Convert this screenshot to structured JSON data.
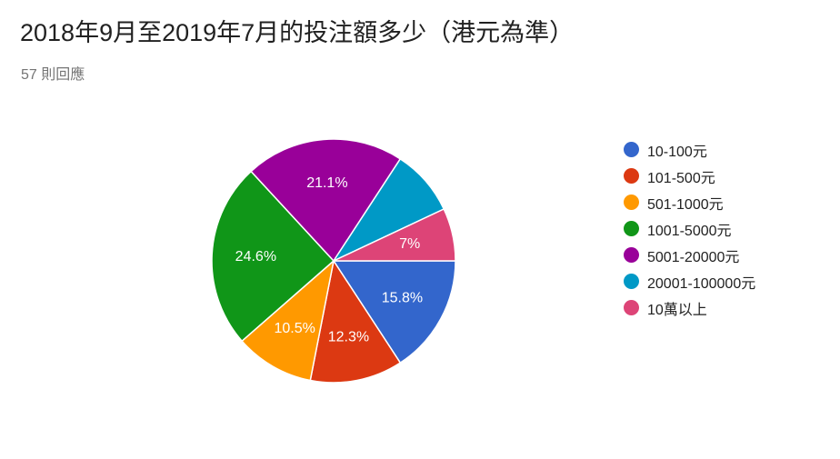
{
  "header": {
    "title": "2018年9月至2019年7月的投注額多少（港元為準）",
    "responses": "57 則回應"
  },
  "chart_data": {
    "type": "pie",
    "title": "2018年9月至2019年7月的投注額多少（港元為準）",
    "legend_position": "right",
    "slices": [
      {
        "label": "10-100元",
        "value": 15.8,
        "display": "15.8%",
        "color": "#3366cc"
      },
      {
        "label": "101-500元",
        "value": 12.3,
        "display": "12.3%",
        "color": "#dc3912"
      },
      {
        "label": "501-1000元",
        "value": 10.5,
        "display": "10.5%",
        "color": "#ff9900"
      },
      {
        "label": "1001-5000元",
        "value": 24.6,
        "display": "24.6%",
        "color": "#109618"
      },
      {
        "label": "5001-20000元",
        "value": 21.1,
        "display": "21.1%",
        "color": "#990099"
      },
      {
        "label": "20001-100000元",
        "value": 8.8,
        "display": "",
        "color": "#0099c6"
      },
      {
        "label": "10萬以上",
        "value": 7.0,
        "display": "7%",
        "color": "#dd4477"
      }
    ]
  }
}
